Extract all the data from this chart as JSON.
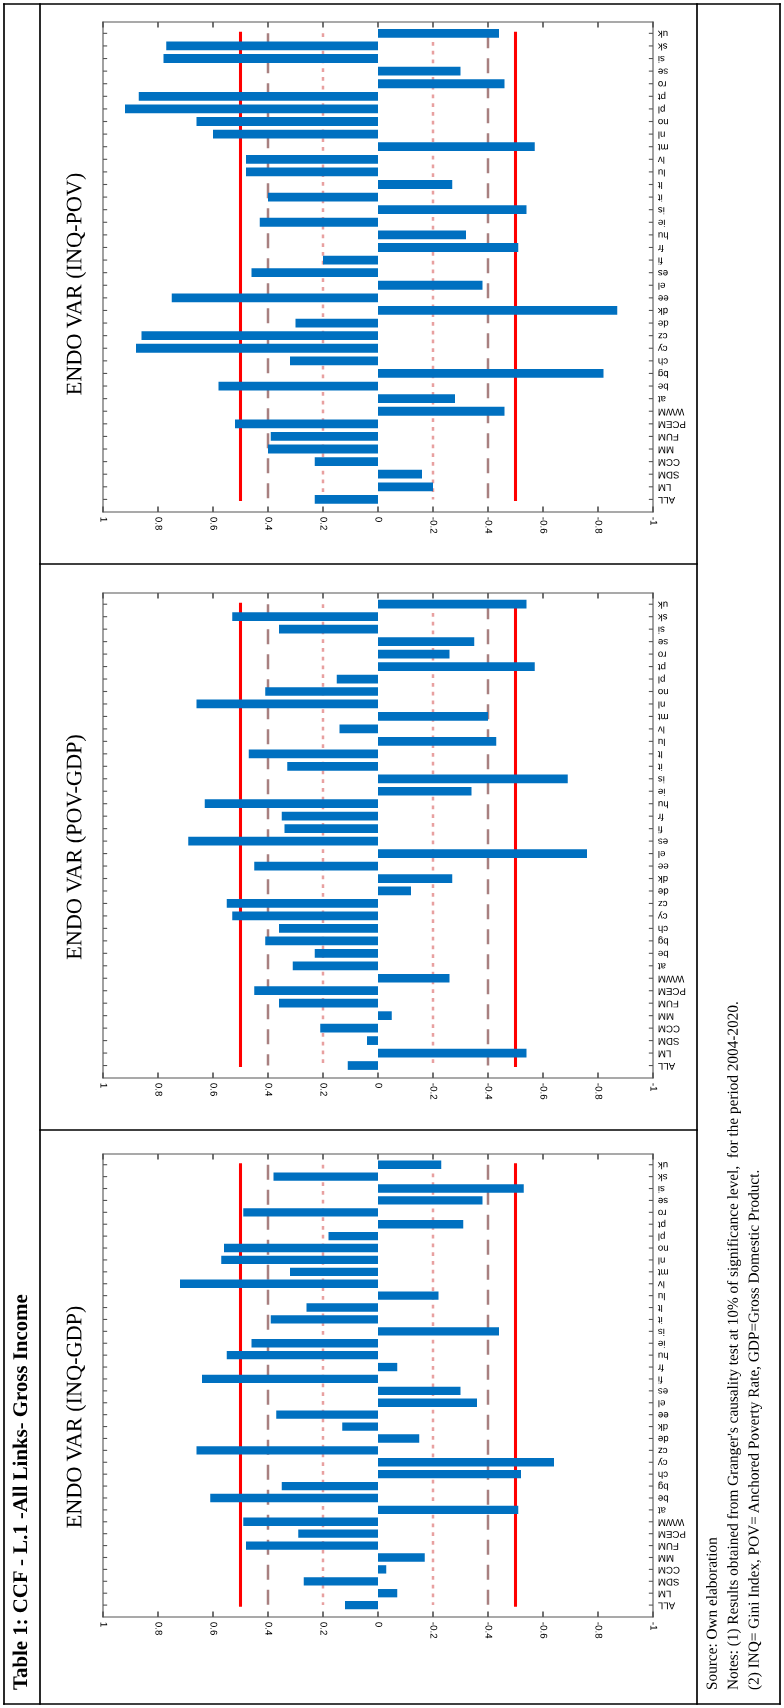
{
  "chart_data": [
    {
      "type": "bar",
      "orientation": "horizontal",
      "title": "Table 1: CCF - L.1 -All Links- Gross Income",
      "subtitle": "ENDO VAR (INQ-GDP)",
      "annotations": [
        "Source: Own elaboration",
        "Notes: (1) Results obtained from Granger's causality test at 10% of significance level,  for the period 2004-2020.",
        "(2) INQ= Gini Index, POV= Anchored Poverty Rate, GDP=Gross Domestic Product."
      ],
      "categories": [
        "uk",
        "sk",
        "si",
        "se",
        "ro",
        "pt",
        "pl",
        "no",
        "nl",
        "mt",
        "lv",
        "lu",
        "lt",
        "it",
        "is",
        "ie",
        "hu",
        "fr",
        "fi",
        "es",
        "el",
        "ee",
        "dk",
        "de",
        "cz",
        "cy",
        "ch",
        "bg",
        "be",
        "at",
        "WWM",
        "PCEM",
        "FUM",
        "MM",
        "CCM",
        "SDM",
        "LM",
        "ALL"
      ],
      "values": [
        -0.23,
        0.38,
        -0.53,
        -0.38,
        0.49,
        -0.31,
        0.18,
        0.56,
        0.57,
        0.32,
        0.72,
        -0.22,
        0.26,
        0.39,
        -0.44,
        0.46,
        0.55,
        -0.07,
        0.64,
        -0.3,
        -0.36,
        0.37,
        0.13,
        -0.15,
        0.66,
        -0.64,
        -0.52,
        0.35,
        0.61,
        -0.51,
        0.49,
        0.29,
        0.48,
        -0.17,
        -0.03,
        0.27,
        -0.07,
        0.12
      ],
      "color": "#0070c0",
      "xlim": [
        1,
        -1
      ],
      "xticks": [
        1,
        0.8,
        0.6,
        0.4,
        0.2,
        0,
        -0.2,
        -0.4,
        -0.6,
        -0.8,
        -1
      ],
      "grid": false,
      "ref_lines": [
        {
          "axis": "x",
          "value": 0.5,
          "color": "#ff0000",
          "line_style": "solid"
        },
        {
          "axis": "x",
          "value": -0.5,
          "color": "#ff0000",
          "line_style": "solid"
        },
        {
          "axis": "x",
          "value": 0.4,
          "color": "#a88080",
          "line_style": "dashed"
        },
        {
          "axis": "x",
          "value": -0.4,
          "color": "#a88080",
          "line_style": "dashed"
        },
        {
          "axis": "x",
          "value": 0.2,
          "color": "#e8a0a0",
          "line_style": "dotted"
        },
        {
          "axis": "x",
          "value": -0.2,
          "color": "#e8a0a0",
          "line_style": "dotted"
        }
      ]
    },
    {
      "type": "bar",
      "orientation": "horizontal",
      "subtitle": "ENDO VAR (POV-GDP)",
      "categories": [
        "uk",
        "sk",
        "si",
        "se",
        "ro",
        "pt",
        "pl",
        "no",
        "nl",
        "mt",
        "lv",
        "lu",
        "lt",
        "it",
        "is",
        "ie",
        "hu",
        "fr",
        "fi",
        "es",
        "el",
        "ee",
        "dk",
        "de",
        "cz",
        "cy",
        "ch",
        "bg",
        "be",
        "at",
        "WWM",
        "PCEM",
        "FUM",
        "MM",
        "CCM",
        "SDM",
        "LM",
        "ALL"
      ],
      "values": [
        -0.54,
        0.53,
        0.36,
        -0.35,
        -0.26,
        -0.57,
        0.15,
        0.41,
        0.66,
        -0.4,
        0.14,
        -0.43,
        0.47,
        0.33,
        -0.69,
        -0.34,
        0.63,
        0.35,
        0.34,
        0.69,
        -0.76,
        0.45,
        -0.27,
        -0.12,
        0.55,
        0.53,
        0.36,
        0.41,
        0.23,
        0.31,
        -0.26,
        0.45,
        0.36,
        -0.05,
        0.21,
        0.04,
        -0.54,
        0.11
      ],
      "color": "#0070c0",
      "xlim": [
        1,
        -1
      ],
      "xticks": [
        1,
        0.8,
        0.6,
        0.4,
        0.2,
        0,
        -0.2,
        -0.4,
        -0.6,
        -0.8,
        -1
      ],
      "grid": false,
      "ref_lines": [
        {
          "axis": "x",
          "value": 0.5,
          "color": "#ff0000",
          "line_style": "solid"
        },
        {
          "axis": "x",
          "value": -0.5,
          "color": "#ff0000",
          "line_style": "solid"
        },
        {
          "axis": "x",
          "value": 0.4,
          "color": "#a88080",
          "line_style": "dashed"
        },
        {
          "axis": "x",
          "value": -0.4,
          "color": "#a88080",
          "line_style": "dashed"
        },
        {
          "axis": "x",
          "value": 0.2,
          "color": "#e8a0a0",
          "line_style": "dotted"
        },
        {
          "axis": "x",
          "value": -0.2,
          "color": "#e8a0a0",
          "line_style": "dotted"
        }
      ]
    },
    {
      "type": "bar",
      "orientation": "horizontal",
      "subtitle": "ENDO VAR (INQ-POV)",
      "categories": [
        "uk",
        "sk",
        "si",
        "se",
        "ro",
        "pt",
        "pl",
        "no",
        "nl",
        "mt",
        "lv",
        "lu",
        "lt",
        "it",
        "is",
        "ie",
        "hu",
        "fr",
        "fi",
        "es",
        "el",
        "ee",
        "dk",
        "de",
        "cz",
        "cy",
        "ch",
        "bg",
        "be",
        "at",
        "WWM",
        "PCEM",
        "FUM",
        "MM",
        "CCM",
        "SDM",
        "LM",
        "ALL"
      ],
      "values": [
        -0.44,
        0.77,
        0.78,
        -0.3,
        -0.46,
        0.87,
        0.92,
        0.66,
        0.6,
        -0.57,
        0.48,
        0.48,
        -0.27,
        0.4,
        -0.54,
        0.43,
        -0.32,
        -0.51,
        0.2,
        0.46,
        -0.38,
        0.75,
        -0.87,
        0.3,
        0.86,
        0.88,
        0.32,
        -0.82,
        0.58,
        -0.28,
        -0.46,
        0.52,
        0.39,
        0.4,
        0.23,
        -0.16,
        -0.2,
        0.23
      ],
      "color": "#0070c0",
      "xlim": [
        1,
        -1
      ],
      "xticks": [
        1,
        0.8,
        0.6,
        0.4,
        0.2,
        0,
        -0.2,
        -0.4,
        -0.6,
        -0.8,
        -1
      ],
      "grid": false,
      "ref_lines": [
        {
          "axis": "x",
          "value": 0.5,
          "color": "#ff0000",
          "line_style": "solid"
        },
        {
          "axis": "x",
          "value": -0.5,
          "color": "#ff0000",
          "line_style": "solid"
        },
        {
          "axis": "x",
          "value": 0.4,
          "color": "#a88080",
          "line_style": "dashed"
        },
        {
          "axis": "x",
          "value": -0.4,
          "color": "#a88080",
          "line_style": "dashed"
        },
        {
          "axis": "x",
          "value": 0.2,
          "color": "#e8a0a0",
          "line_style": "dotted"
        },
        {
          "axis": "x",
          "value": -0.2,
          "color": "#e8a0a0",
          "line_style": "dotted"
        }
      ]
    }
  ]
}
